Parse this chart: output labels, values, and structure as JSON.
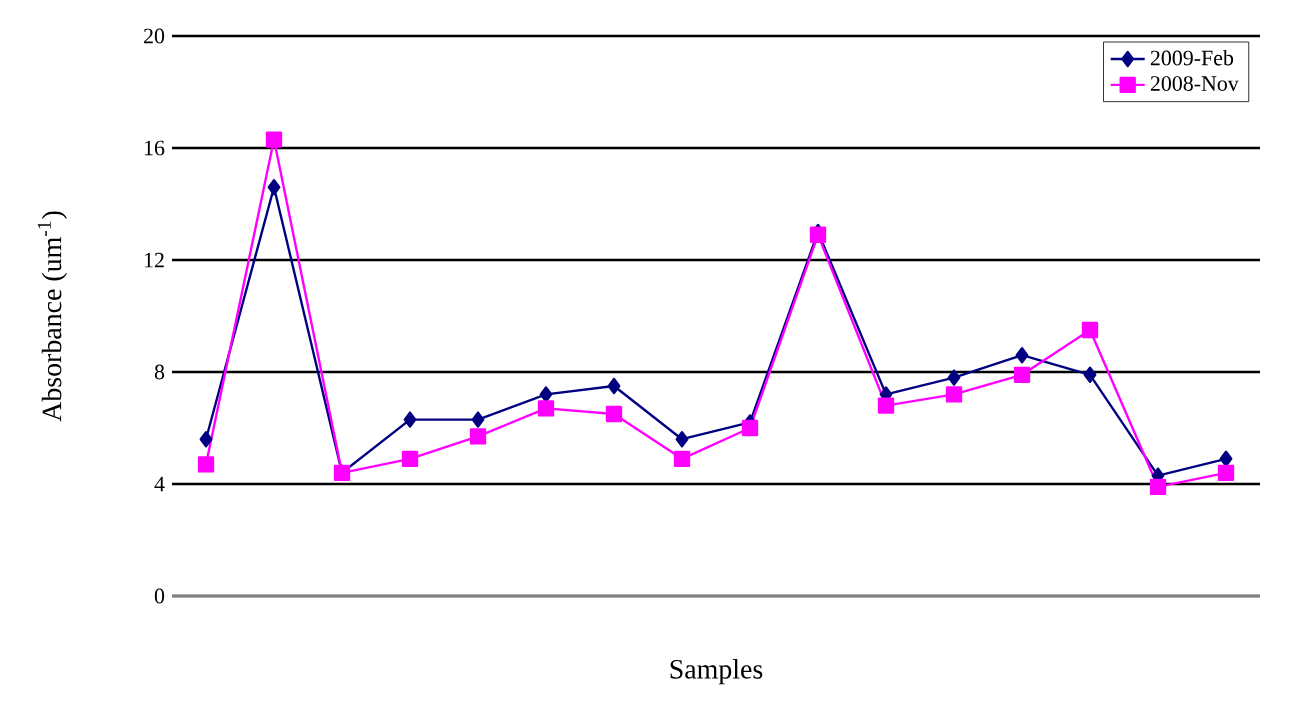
{
  "chart_data": {
    "type": "line",
    "xlabel": "Samples",
    "ylabel": "Absorbance (um$^{-1}$)",
    "categories": [
      null,
      null,
      null,
      null,
      null,
      null,
      null,
      null,
      null,
      null,
      null,
      null,
      null,
      null,
      null,
      null
    ],
    "series": [
      {
        "name": "2009-Feb",
        "color": "#000080",
        "marker": "diamond",
        "values": [
          5.6,
          14.6,
          4.4,
          6.3,
          6.3,
          7.2,
          7.5,
          5.6,
          6.2,
          13.0,
          7.2,
          7.8,
          8.6,
          7.9,
          4.3,
          4.9
        ]
      },
      {
        "name": "2008-Nov",
        "color": "#ff00ff",
        "marker": "square",
        "values": [
          4.7,
          16.3,
          4.4,
          4.9,
          5.7,
          6.7,
          6.5,
          4.9,
          6.0,
          12.9,
          6.8,
          7.2,
          7.9,
          9.5,
          3.9,
          4.4
        ]
      }
    ],
    "ylim": [
      0,
      20
    ],
    "yticks": [
      0,
      4,
      8,
      12,
      16,
      20
    ],
    "grid": "y",
    "legend": "top right",
    "tick_labels": "y"
  }
}
